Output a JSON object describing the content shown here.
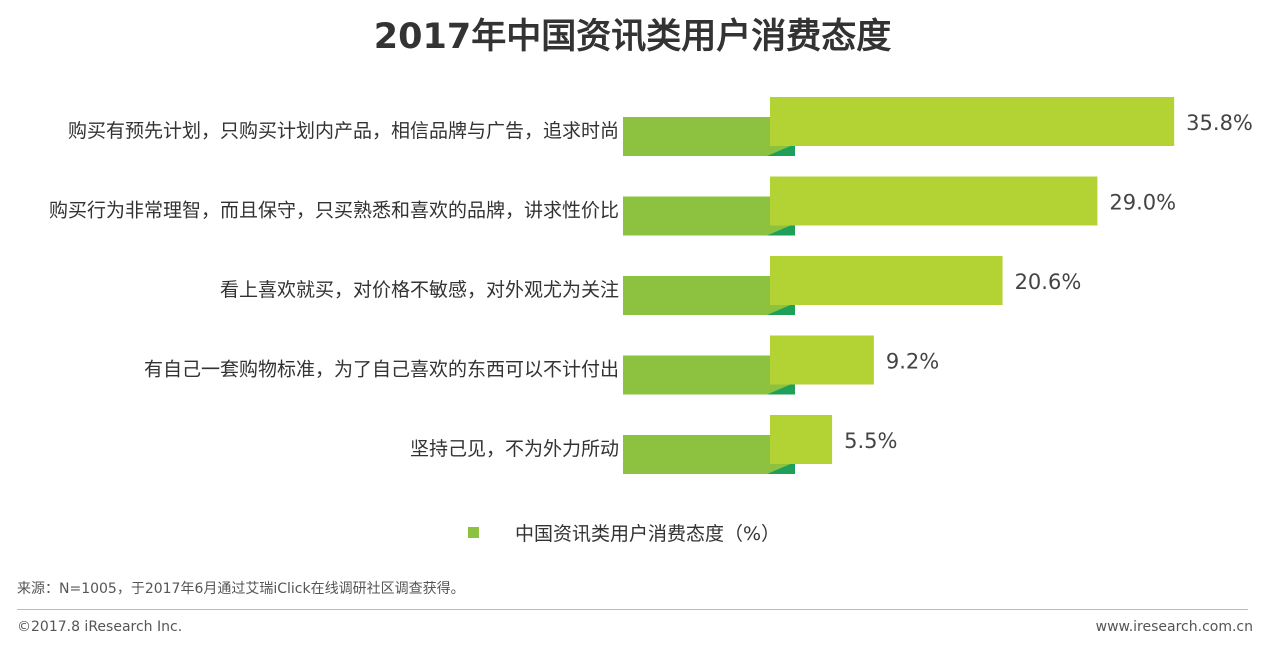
{
  "chart_data": {
    "type": "bar",
    "orientation": "horizontal",
    "title": "2017年中国资讯类用户消费态度",
    "categories": [
      "购买有预先计划，只购买计划内产品，相信品牌与广告，追求时尚",
      "购买行为非常理智，而且保守，只买熟悉和喜欢的品牌，讲求性价比",
      "看上喜欢就买，对价格不敏感，对外观尤为关注",
      "有自己一套购物标准，为了自己喜欢的东西可以不计付出",
      "坚持己见，不为外力所动"
    ],
    "series": [
      {
        "name": "中国资讯类用户消费态度（%）",
        "values": [
          35.8,
          29.0,
          20.6,
          9.2,
          5.5
        ]
      }
    ],
    "value_labels": [
      "35.8%",
      "29.0%",
      "20.6%",
      "9.2%",
      "5.5%"
    ],
    "xlim": [
      0,
      40
    ],
    "grid": false,
    "legend_position": "bottom-center"
  },
  "colors": {
    "bar": "#b3d234",
    "label_band": "#8cc23f",
    "band_accent": "#1fa05a"
  },
  "source": "来源：N=1005，于2017年6月通过艾瑞iClick在线调研社区调查获得。",
  "footer": {
    "copyright": "©2017.8 iResearch Inc.",
    "website": "www.iresearch.com.cn"
  }
}
